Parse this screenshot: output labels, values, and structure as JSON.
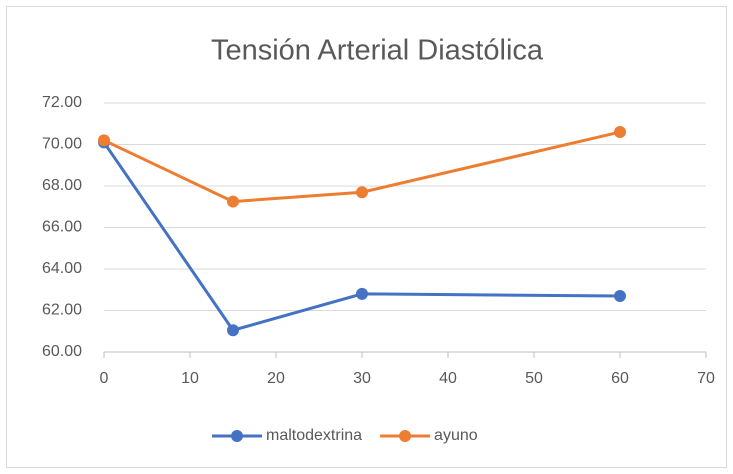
{
  "chart_data": {
    "type": "line",
    "title": "Tensión Arterial Diastólica",
    "x": [
      0,
      15,
      30,
      60
    ],
    "series": [
      {
        "name": "maltodextrina",
        "color": "#4472c4",
        "values": [
          70.1,
          61.05,
          62.8,
          62.7
        ]
      },
      {
        "name": "ayuno",
        "color": "#ed7d31",
        "values": [
          70.2,
          67.25,
          67.7,
          70.6
        ]
      }
    ],
    "xlim": [
      0,
      70
    ],
    "xticks": [
      0,
      10,
      20,
      30,
      40,
      50,
      60,
      70
    ],
    "ylim": [
      60,
      72
    ],
    "yticks": [
      {
        "value": 60,
        "label": "60.00"
      },
      {
        "value": 62,
        "label": "62.00"
      },
      {
        "value": 64,
        "label": "64.00"
      },
      {
        "value": 66,
        "label": "66.00"
      },
      {
        "value": 68,
        "label": "68.00"
      },
      {
        "value": 70,
        "label": "70.00"
      },
      {
        "value": 72,
        "label": "72.00"
      }
    ],
    "grid": true,
    "legend": "bottom"
  }
}
